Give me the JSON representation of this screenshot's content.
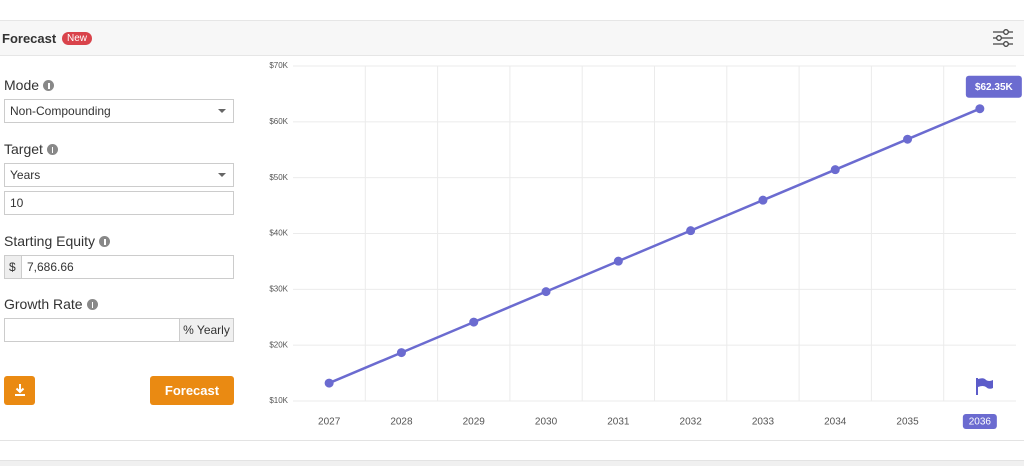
{
  "header": {
    "title": "Forecast",
    "badge": "New"
  },
  "form": {
    "mode": {
      "label": "Mode",
      "value": "Non-Compounding"
    },
    "target": {
      "label": "Target",
      "unit": "Years",
      "value": "10"
    },
    "starting_equity": {
      "label": "Starting Equity",
      "currency": "$",
      "value": "7,686.66"
    },
    "growth_rate": {
      "label": "Growth Rate",
      "unit": "% Yearly"
    },
    "submit": "Forecast"
  },
  "chart_data": {
    "type": "line",
    "categories": [
      "2027",
      "2028",
      "2029",
      "2030",
      "2031",
      "2032",
      "2033",
      "2034",
      "2035",
      "2036"
    ],
    "values": [
      13210,
      18670,
      24130,
      29590,
      35050,
      40510,
      45970,
      51430,
      56890,
      62350
    ],
    "value_labels": [
      null,
      null,
      null,
      null,
      null,
      null,
      null,
      null,
      null,
      "$62.35K"
    ],
    "color": "#6b6bd0",
    "ylim": [
      10000,
      70000
    ],
    "yticks": [
      {
        "value": 10000,
        "label": "$10K"
      },
      {
        "value": 20000,
        "label": "$20K"
      },
      {
        "value": 30000,
        "label": "$30K"
      },
      {
        "value": 40000,
        "label": "$40K"
      },
      {
        "value": 50000,
        "label": "$50K"
      },
      {
        "value": 60000,
        "label": "$60K"
      },
      {
        "value": 70000,
        "label": "$70K"
      }
    ],
    "grid": true
  }
}
